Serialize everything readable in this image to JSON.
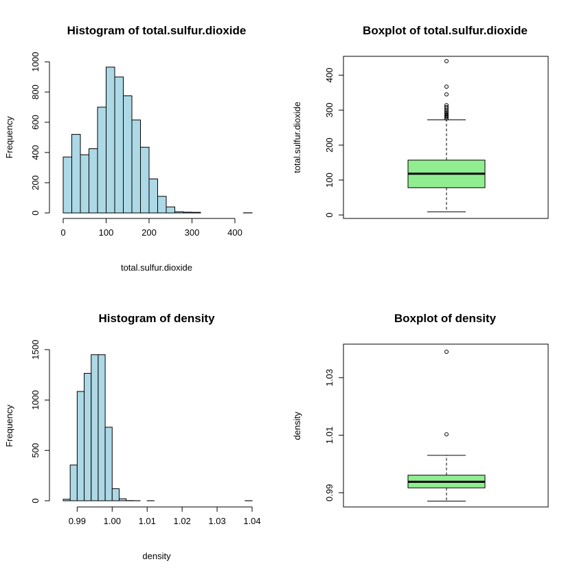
{
  "colors": {
    "hist_fill": "#add8e6",
    "box_fill": "#90ee90",
    "stroke": "#000000",
    "background": "#ffffff"
  },
  "chart_data": [
    {
      "type": "bar",
      "subtype": "histogram",
      "title": "Histogram of total.sulfur.dioxide",
      "xlabel": "total.sulfur.dioxide",
      "ylabel": "Frequency",
      "bin_edges": [
        0,
        20,
        40,
        60,
        80,
        100,
        120,
        140,
        160,
        180,
        200,
        220,
        240,
        260,
        280,
        300,
        320,
        340,
        360,
        380,
        400,
        420,
        440
      ],
      "values": [
        370,
        520,
        385,
        425,
        700,
        965,
        900,
        775,
        615,
        435,
        225,
        110,
        40,
        8,
        5,
        4,
        0,
        0,
        0,
        0,
        0,
        1
      ],
      "xticks": [
        0,
        100,
        200,
        300,
        400
      ],
      "yticks": [
        0,
        200,
        400,
        600,
        800,
        1000
      ],
      "xlim": [
        0,
        440
      ],
      "ylim": [
        0,
        1000
      ],
      "grid": false
    },
    {
      "type": "boxplot",
      "title": "Boxplot of total.sulfur.dioxide",
      "xlabel": "",
      "ylabel": "total.sulfur.dioxide",
      "yticks": [
        0,
        100,
        200,
        300,
        400
      ],
      "ylim": [
        0,
        440
      ],
      "whisker_low": 9,
      "q1": 78,
      "median": 118,
      "q3": 157,
      "whisker_high": 272,
      "outliers": [
        276,
        280,
        282,
        285,
        288,
        292,
        296,
        300,
        305,
        309,
        314,
        345,
        367,
        440
      ],
      "grid": false
    },
    {
      "type": "bar",
      "subtype": "histogram",
      "title": "Histogram of density",
      "xlabel": "density",
      "ylabel": "Frequency",
      "bin_edges": [
        0.986,
        0.988,
        0.99,
        0.992,
        0.994,
        0.996,
        0.998,
        1.0,
        1.002,
        1.004,
        1.006,
        1.008,
        1.01,
        1.012,
        1.014,
        1.016,
        1.018,
        1.02,
        1.022,
        1.024,
        1.026,
        1.028,
        1.03,
        1.032,
        1.034,
        1.036,
        1.038,
        1.04
      ],
      "values": [
        15,
        355,
        1085,
        1265,
        1450,
        1450,
        730,
        120,
        20,
        2,
        1,
        0,
        1,
        0,
        0,
        0,
        0,
        0,
        0,
        0,
        0,
        0,
        0,
        0,
        0,
        0,
        1
      ],
      "xticks": [
        0.99,
        1.0,
        1.01,
        1.02,
        1.03,
        1.04
      ],
      "xtick_labels": [
        "0.99",
        "1.00",
        "1.01",
        "1.02",
        "1.03",
        "1.04"
      ],
      "yticks": [
        0,
        500,
        1000,
        1500
      ],
      "xlim": [
        0.986,
        1.04
      ],
      "ylim": [
        0,
        1500
      ],
      "grid": false
    },
    {
      "type": "boxplot",
      "title": "Boxplot of density",
      "xlabel": "",
      "ylabel": "density",
      "yticks": [
        0.99,
        1.01,
        1.03
      ],
      "ytick_labels": [
        "0.99",
        "1.01",
        "1.03"
      ],
      "ylim": [
        0.9865,
        1.0395
      ],
      "whisker_low": 0.9871,
      "q1": 0.9917,
      "median": 0.9938,
      "q3": 0.9961,
      "whisker_high": 1.003,
      "outliers": [
        1.0103,
        1.039
      ],
      "grid": false
    }
  ]
}
